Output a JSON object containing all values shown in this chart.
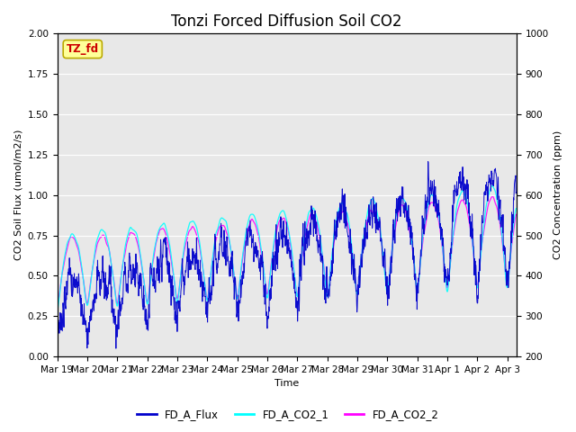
{
  "title": "Tonzi Forced Diffusion Soil CO2",
  "xlabel": "Time",
  "ylabel_left": "CO2 Soil Flux (umol/m2/s)",
  "ylabel_right": "CO2 Concentration (ppm)",
  "ylim_left": [
    0.0,
    2.0
  ],
  "ylim_right": [
    200,
    1000
  ],
  "color_flux": "#0000cc",
  "color_co2_1": "#00ffff",
  "color_co2_2": "#ff00ff",
  "legend_labels": [
    "FD_A_Flux",
    "FD_A_CO2_1",
    "FD_A_CO2_2"
  ],
  "site_label": "TZ_fd",
  "site_label_color": "#cc0000",
  "site_label_bg": "#ffff99",
  "site_label_edge": "#bbaa00",
  "background_color": "#e8e8e8",
  "title_fontsize": 12,
  "axis_fontsize": 8,
  "tick_fontsize": 7.5,
  "n_points": 1500,
  "start_day": 0,
  "end_day": 15.3,
  "xtick_days": [
    0,
    1,
    2,
    3,
    4,
    5,
    6,
    7,
    8,
    9,
    10,
    11,
    12,
    13,
    14,
    15
  ],
  "xtick_labels": [
    "Mar 19",
    "Mar 20",
    "Mar 21",
    "Mar 22",
    "Mar 23",
    "Mar 24",
    "Mar 25",
    "Mar 26",
    "Mar 27",
    "Mar 28",
    "Mar 29",
    "Mar 30",
    "Mar 31",
    "Apr 1",
    "Apr 2",
    "Apr 3"
  ]
}
